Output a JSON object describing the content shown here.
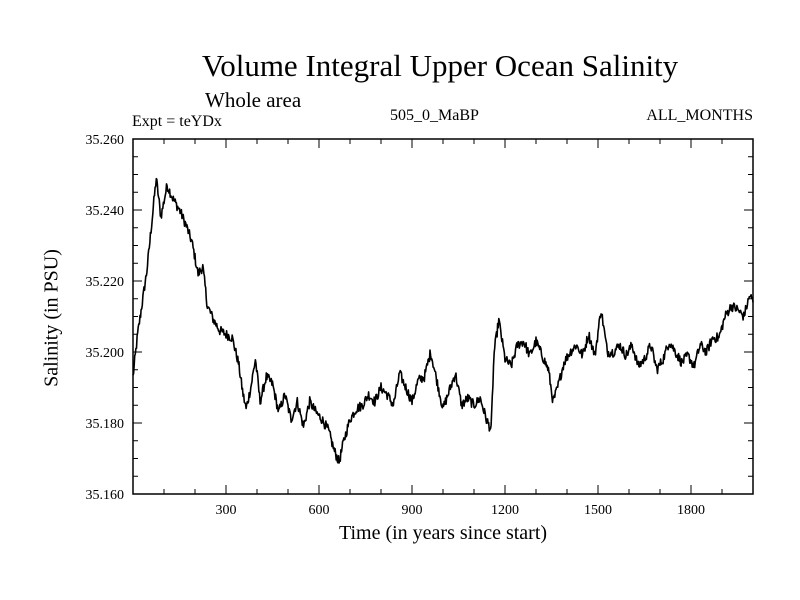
{
  "chart_data": {
    "type": "line",
    "title": "Volume Integral Upper Ocean Salinity",
    "subtitle": "Whole area",
    "left_label": "Expt = teYDx",
    "center_label": "505_0_MaBP",
    "right_label": "ALL_MONTHS",
    "xlabel": "Time (in years since start)",
    "ylabel": "Salinity (in PSU)",
    "xlim": [
      0,
      2000
    ],
    "ylim": [
      35.16,
      35.26
    ],
    "x_ticks": [
      300,
      600,
      900,
      1200,
      1500,
      1800
    ],
    "y_ticks": [
      35.16,
      35.18,
      35.2,
      35.22,
      35.24,
      35.26
    ],
    "x_tick_labels": [
      "300",
      "600",
      "900",
      "1200",
      "1500",
      "1800"
    ],
    "y_tick_labels": [
      "35.160",
      "35.180",
      "35.200",
      "35.220",
      "35.240",
      "35.260"
    ],
    "series": [
      {
        "name": "salinity",
        "x": [
          0,
          15,
          30,
          45,
          60,
          75,
          90,
          110,
          130,
          150,
          170,
          190,
          210,
          225,
          240,
          260,
          280,
          300,
          320,
          340,
          355,
          365,
          380,
          395,
          410,
          430,
          450,
          470,
          490,
          510,
          530,
          550,
          570,
          590,
          610,
          630,
          650,
          665,
          680,
          700,
          720,
          740,
          760,
          780,
          800,
          820,
          840,
          860,
          880,
          900,
          920,
          940,
          960,
          980,
          1000,
          1020,
          1040,
          1060,
          1080,
          1100,
          1120,
          1140,
          1155,
          1165,
          1180,
          1200,
          1220,
          1240,
          1260,
          1280,
          1300,
          1320,
          1340,
          1355,
          1370,
          1390,
          1410,
          1430,
          1450,
          1470,
          1490,
          1510,
          1530,
          1550,
          1570,
          1590,
          1610,
          1630,
          1650,
          1670,
          1690,
          1710,
          1730,
          1750,
          1770,
          1790,
          1810,
          1830,
          1850,
          1870,
          1890,
          1910,
          1930,
          1950,
          1970,
          1990,
          2000
        ],
        "y": [
          35.193,
          35.205,
          35.214,
          35.223,
          35.236,
          35.249,
          35.238,
          35.247,
          35.243,
          35.24,
          35.236,
          35.231,
          35.222,
          35.224,
          35.213,
          35.209,
          35.206,
          35.205,
          35.204,
          35.197,
          35.188,
          35.184,
          35.19,
          35.198,
          35.186,
          35.193,
          35.191,
          35.183,
          35.188,
          35.181,
          35.186,
          35.179,
          35.186,
          35.183,
          35.181,
          35.178,
          35.172,
          35.169,
          35.175,
          35.181,
          35.184,
          35.185,
          35.188,
          35.186,
          35.19,
          35.188,
          35.185,
          35.194,
          35.19,
          35.186,
          35.192,
          35.193,
          35.2,
          35.192,
          35.184,
          35.189,
          35.194,
          35.185,
          35.187,
          35.185,
          35.187,
          35.181,
          35.178,
          35.2,
          35.209,
          35.198,
          35.196,
          35.202,
          35.203,
          35.199,
          35.203,
          35.199,
          35.195,
          35.186,
          35.19,
          35.197,
          35.2,
          35.202,
          35.199,
          35.205,
          35.199,
          35.212,
          35.2,
          35.2,
          35.202,
          35.199,
          35.202,
          35.196,
          35.198,
          35.202,
          35.195,
          35.198,
          35.203,
          35.2,
          35.197,
          35.199,
          35.196,
          35.202,
          35.2,
          35.204,
          35.204,
          35.21,
          35.213,
          35.212,
          35.21,
          35.216,
          35.214
        ]
      }
    ]
  }
}
